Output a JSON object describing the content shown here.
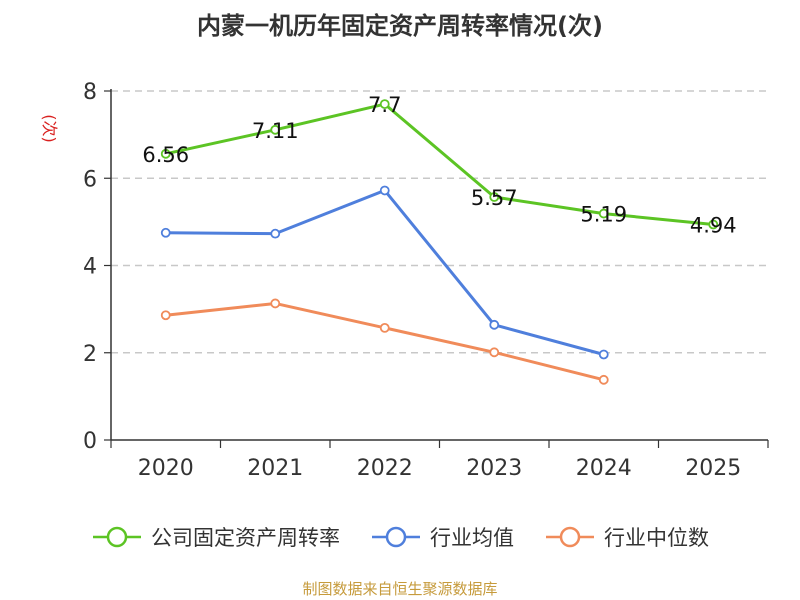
{
  "chart_data": {
    "type": "line",
    "title": "内蒙一机历年固定资产周转率情况(次)",
    "ylabel": "(次)",
    "xlabel": "",
    "ylim": [
      0,
      8
    ],
    "yticks": [
      0,
      2,
      4,
      6,
      8
    ],
    "categories": [
      "2020",
      "2021",
      "2022",
      "2023",
      "2024",
      "2025"
    ],
    "grid": true,
    "legend_position": "bottom",
    "series": [
      {
        "name": "公司固定资产周转率",
        "color": "#5cc424",
        "values": [
          6.56,
          7.11,
          7.7,
          5.57,
          5.19,
          4.94
        ],
        "labels": [
          "6.56",
          "7.11",
          "7.7",
          "5.57",
          "5.19",
          "4.94"
        ]
      },
      {
        "name": "行业均值",
        "color": "#4f7fdc",
        "values": [
          4.75,
          4.73,
          5.72,
          2.64,
          1.96,
          null
        ],
        "labels": null
      },
      {
        "name": "行业中位数",
        "color": "#f08b5a",
        "values": [
          2.86,
          3.13,
          2.57,
          2.01,
          1.38,
          null
        ],
        "labels": null
      }
    ],
    "source": "制图数据来自恒生聚源数据库"
  }
}
